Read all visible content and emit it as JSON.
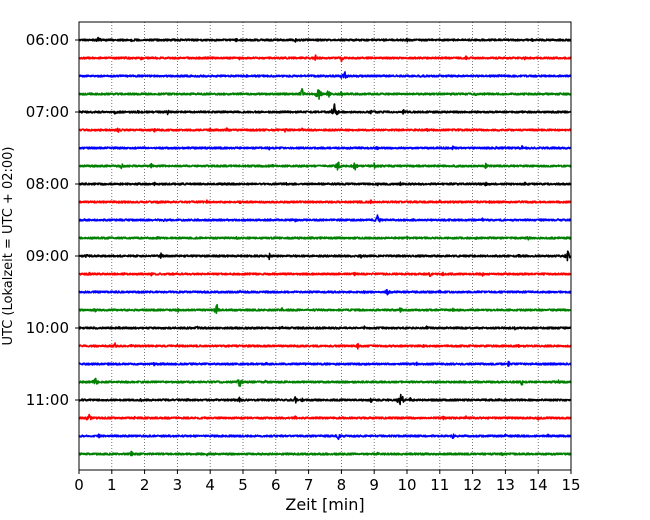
{
  "chart_data": {
    "type": "line",
    "xlabel": "Zeit  [min]",
    "ylabel": "UTC (Lokalzeit = UTC + 02:00)",
    "xlim": [
      0,
      15
    ],
    "x_ticks": [
      "0",
      "1",
      "2",
      "3",
      "4",
      "5",
      "6",
      "7",
      "8",
      "9",
      "10",
      "11",
      "12",
      "13",
      "14",
      "15"
    ],
    "y_tick_labels": [
      "06:00",
      "07:00",
      "08:00",
      "09:00",
      "10:00",
      "11:00"
    ],
    "grid": "vertical dotted at each minute",
    "trace_colors": [
      "#000000",
      "#ff0000",
      "#0000ff",
      "#008000"
    ],
    "traces": [
      {
        "start": "06:00",
        "color": "black",
        "events": [
          [
            0.6,
            4
          ],
          [
            1.6,
            3
          ],
          [
            4.8,
            2
          ],
          [
            6.6,
            2
          ],
          [
            10.0,
            2
          ],
          [
            13.8,
            2
          ]
        ]
      },
      {
        "start": "06:15",
        "color": "red",
        "events": [
          [
            1.9,
            3
          ],
          [
            4.9,
            2
          ],
          [
            7.2,
            4
          ],
          [
            8.0,
            4
          ],
          [
            11.8,
            2
          ],
          [
            13.6,
            2
          ]
        ]
      },
      {
        "start": "06:30",
        "color": "blue",
        "events": [
          [
            5.1,
            2
          ],
          [
            8.0,
            3
          ],
          [
            8.1,
            5
          ],
          [
            10.4,
            2
          ],
          [
            12.8,
            2
          ]
        ]
      },
      {
        "start": "06:45",
        "color": "green",
        "events": [
          [
            6.8,
            6
          ],
          [
            7.3,
            8
          ],
          [
            7.6,
            5
          ],
          [
            8.0,
            3
          ],
          [
            12.1,
            3
          ]
        ]
      },
      {
        "start": "07:00",
        "color": "black",
        "events": [
          [
            1.1,
            3
          ],
          [
            1.8,
            2
          ],
          [
            2.7,
            3
          ],
          [
            7.8,
            12
          ],
          [
            8.9,
            2
          ],
          [
            9.9,
            3
          ]
        ]
      },
      {
        "start": "07:15",
        "color": "red",
        "events": [
          [
            1.2,
            3
          ],
          [
            2.3,
            2
          ],
          [
            4.0,
            3
          ],
          [
            4.5,
            3
          ],
          [
            6.3,
            3
          ],
          [
            6.8,
            2
          ],
          [
            10.6,
            2
          ]
        ]
      },
      {
        "start": "07:30",
        "color": "blue",
        "events": [
          [
            5.8,
            2
          ],
          [
            9.1,
            2
          ],
          [
            11.4,
            2
          ],
          [
            12.7,
            2
          ],
          [
            13.5,
            3
          ]
        ]
      },
      {
        "start": "07:45",
        "color": "green",
        "events": [
          [
            1.3,
            3
          ],
          [
            2.2,
            3
          ],
          [
            5.9,
            2
          ],
          [
            7.9,
            6
          ],
          [
            8.4,
            6
          ],
          [
            9.0,
            3
          ],
          [
            12.4,
            3
          ]
        ]
      },
      {
        "start": "08:00",
        "color": "black",
        "events": [
          [
            2.3,
            2
          ],
          [
            6.3,
            2
          ],
          [
            9.1,
            3
          ],
          [
            9.8,
            2
          ],
          [
            12.4,
            2
          ],
          [
            13.6,
            2
          ]
        ]
      },
      {
        "start": "08:15",
        "color": "red",
        "events": [
          [
            2.4,
            2
          ],
          [
            3.9,
            2
          ],
          [
            4.9,
            2
          ],
          [
            8.9,
            2
          ],
          [
            11.0,
            2
          ],
          [
            12.5,
            2
          ]
        ]
      },
      {
        "start": "08:30",
        "color": "blue",
        "events": [
          [
            2.6,
            2
          ],
          [
            6.6,
            2
          ],
          [
            9.1,
            6
          ],
          [
            10.2,
            3
          ],
          [
            12.3,
            2
          ]
        ]
      },
      {
        "start": "08:45",
        "color": "green",
        "events": [
          [
            2.4,
            2
          ],
          [
            4.8,
            2
          ],
          [
            7.1,
            2
          ],
          [
            10.0,
            2
          ],
          [
            12.1,
            2
          ],
          [
            13.7,
            3
          ]
        ]
      },
      {
        "start": "09:00",
        "color": "black",
        "events": [
          [
            0.2,
            4
          ],
          [
            2.5,
            3
          ],
          [
            5.8,
            4
          ],
          [
            8.6,
            2
          ],
          [
            11.2,
            2
          ],
          [
            13.4,
            3
          ],
          [
            14.9,
            6
          ]
        ]
      },
      {
        "start": "09:15",
        "color": "red",
        "events": [
          [
            0.3,
            3
          ],
          [
            1.4,
            2
          ],
          [
            2.2,
            2
          ],
          [
            8.4,
            2
          ],
          [
            10.7,
            3
          ],
          [
            11.1,
            2
          ],
          [
            12.3,
            2
          ]
        ]
      },
      {
        "start": "09:30",
        "color": "blue",
        "events": [
          [
            4.9,
            2
          ],
          [
            8.7,
            2
          ],
          [
            9.4,
            4
          ],
          [
            11.0,
            2
          ],
          [
            12.6,
            2
          ]
        ]
      },
      {
        "start": "09:45",
        "color": "green",
        "events": [
          [
            0.5,
            2
          ],
          [
            3.0,
            3
          ],
          [
            4.2,
            7
          ],
          [
            6.2,
            3
          ],
          [
            9.8,
            3
          ],
          [
            11.4,
            2
          ]
        ]
      },
      {
        "start": "10:00",
        "color": "black",
        "events": [
          [
            1.2,
            2
          ],
          [
            3.6,
            2
          ],
          [
            6.2,
            2
          ],
          [
            8.7,
            2
          ],
          [
            10.6,
            2
          ],
          [
            13.3,
            2
          ]
        ]
      },
      {
        "start": "10:15",
        "color": "red",
        "events": [
          [
            1.1,
            3
          ],
          [
            1.6,
            2
          ],
          [
            3.0,
            2
          ],
          [
            8.5,
            3
          ],
          [
            10.5,
            2
          ],
          [
            13.4,
            2
          ]
        ]
      },
      {
        "start": "10:30",
        "color": "blue",
        "events": [
          [
            0.9,
            2
          ],
          [
            2.3,
            2
          ],
          [
            5.7,
            2
          ],
          [
            10.3,
            2
          ],
          [
            13.1,
            3
          ]
        ]
      },
      {
        "start": "10:45",
        "color": "green",
        "events": [
          [
            0.5,
            6
          ],
          [
            4.9,
            6
          ],
          [
            5.7,
            3
          ],
          [
            10.9,
            2
          ],
          [
            13.5,
            4
          ],
          [
            14.6,
            4
          ]
        ]
      },
      {
        "start": "11:00",
        "color": "black",
        "events": [
          [
            1.9,
            2
          ],
          [
            3.3,
            2
          ],
          [
            4.9,
            4
          ],
          [
            6.6,
            4
          ],
          [
            6.8,
            3
          ],
          [
            8.9,
            3
          ],
          [
            9.8,
            13
          ],
          [
            10.1,
            3
          ],
          [
            12.8,
            2
          ]
        ]
      },
      {
        "start": "11:15",
        "color": "red",
        "events": [
          [
            0.3,
            5
          ],
          [
            1.7,
            2
          ],
          [
            6.6,
            3
          ],
          [
            11.1,
            2
          ],
          [
            11.8,
            2
          ],
          [
            14.0,
            2
          ]
        ]
      },
      {
        "start": "11:30",
        "color": "blue",
        "events": [
          [
            0.6,
            3
          ],
          [
            7.9,
            4
          ],
          [
            11.4,
            3
          ],
          [
            13.0,
            2
          ],
          [
            14.3,
            2
          ]
        ]
      },
      {
        "start": "11:45",
        "color": "green",
        "events": [
          [
            1.6,
            3
          ],
          [
            3.9,
            2
          ],
          [
            6.8,
            2
          ],
          [
            9.1,
            2
          ],
          [
            12.9,
            2
          ]
        ]
      }
    ]
  }
}
